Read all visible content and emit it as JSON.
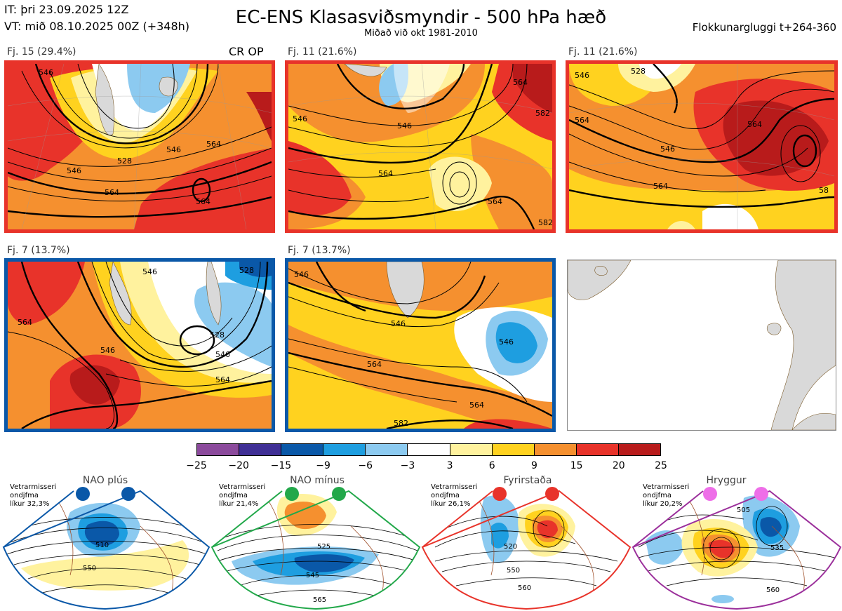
{
  "header": {
    "it": "IT: þri 23.09.2025 12Z",
    "vt": "VT: mið 08.10.2025 00Z  (+348h)",
    "title": "EC-ENS Klasasviðsmyndir - 500 hPa hæð",
    "subtitle": "Miðað við okt 1981-2010",
    "window": "Flokkunargluggi t+264-360"
  },
  "panels": [
    {
      "label": "Fj. 15 (29.4%)",
      "extra": "CR OP",
      "frame_color": "#e8332a",
      "contours": [
        "546",
        "528",
        "546",
        "564",
        "564",
        "564",
        "546"
      ]
    },
    {
      "label": "Fj. 11 (21.6%)",
      "frame_color": "#e8332a",
      "contours": [
        "546",
        "546",
        "564",
        "564",
        "582",
        "582",
        "564"
      ]
    },
    {
      "label": "Fj. 11 (21.6%)",
      "frame_color": "#e8332a",
      "contours": [
        "546",
        "546",
        "528",
        "564",
        "564",
        "564",
        "58"
      ]
    },
    {
      "label": "Fj. 7 (13.7%)",
      "frame_color": "#0a58a8",
      "contours": [
        "564",
        "546",
        "546",
        "528",
        "546",
        "564",
        "528"
      ]
    },
    {
      "label": "Fj. 7 (13.7%)",
      "frame_color": "#0a58a8",
      "contours": [
        "546",
        "546",
        "546",
        "564",
        "564",
        "582"
      ]
    }
  ],
  "colorbar": {
    "colors": [
      "#8b4a9c",
      "#3f2f95",
      "#0a58a8",
      "#1e9ee0",
      "#8ccaf0",
      "#ffffff",
      "#fff29e",
      "#ffd21f",
      "#f5902f",
      "#e8332a",
      "#b81b1b"
    ],
    "ticks": [
      "−25",
      "−20",
      "−15",
      "−9",
      "−6",
      "−3",
      "3",
      "6",
      "9",
      "15",
      "20",
      "25"
    ]
  },
  "regimes": [
    {
      "name": "NAO plús",
      "note1": "Vetrarmisseri",
      "note2": "ondjfma",
      "note3": "líkur 32,3%",
      "dot_color": "#0a58a8",
      "border_color": "#0a58a8",
      "labels": [
        "510",
        "550"
      ]
    },
    {
      "name": "NAO mínus",
      "note1": "Vetrarmisseri",
      "note2": "ondjfma",
      "note3": "líkur 21,4%",
      "dot_color": "#22a84a",
      "border_color": "#22a84a",
      "labels": [
        "525",
        "545",
        "565"
      ]
    },
    {
      "name": "Fyrirstaða",
      "note1": "Vetrarmisseri",
      "note2": "ondjfma",
      "note3": "líkur 26,1%",
      "dot_color": "#e8332a",
      "border_color": "#e8332a",
      "labels": [
        "520",
        "550",
        "560"
      ]
    },
    {
      "name": "Hryggur",
      "note1": "Vetrarmisseri",
      "note2": "ondjfma",
      "note3": "líkur 20,2%",
      "dot_color": "#ee6ee8",
      "border_color": "#9b2f9b",
      "labels": [
        "505",
        "535",
        "560"
      ]
    }
  ]
}
